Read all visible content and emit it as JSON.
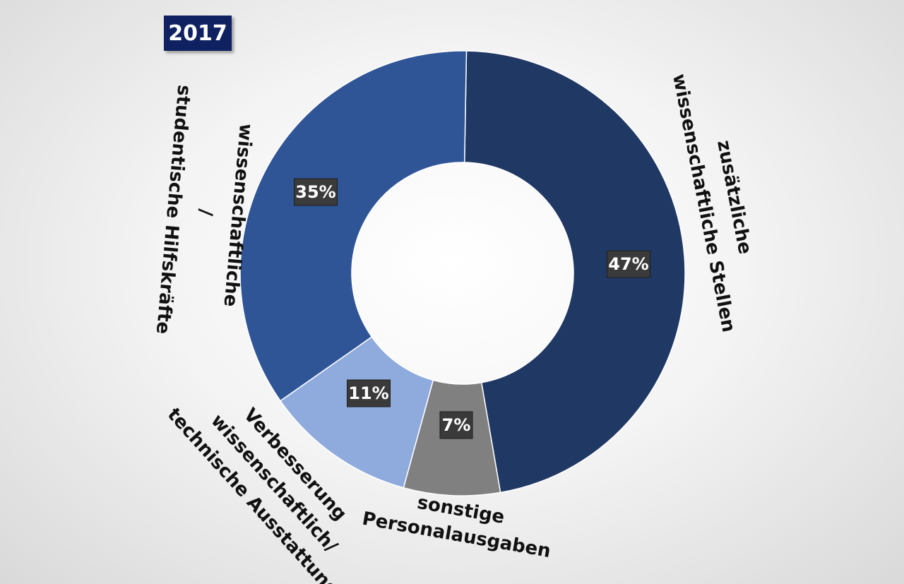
{
  "year_badge": "2017",
  "chart_data": {
    "type": "pie",
    "variant": "donut",
    "categories": [
      "zusätzliche wissenschaftliche Stellen",
      "sonstige Personalausgaben",
      "Verbesserung wissenschaftlich/ technische Ausstattung",
      "wissenschaftliche / studentische Hilfskräfte"
    ],
    "values": [
      47,
      7,
      11,
      35
    ],
    "value_labels": [
      "47%",
      "7%",
      "11%",
      "35%"
    ],
    "label_lines": [
      [
        "zusätzliche",
        "wissenschaftliche Stellen"
      ],
      [
        "sonstige",
        "Personalausgaben"
      ],
      [
        "Verbesserung",
        "wissenschaftlich/",
        "technische Ausstattung"
      ],
      [
        "wissenschaftliche",
        "/",
        "studentische  Hilfskräfte"
      ]
    ],
    "colors": [
      "#203864",
      "#808080",
      "#8faadc",
      "#2f5597"
    ],
    "legend": "none"
  }
}
